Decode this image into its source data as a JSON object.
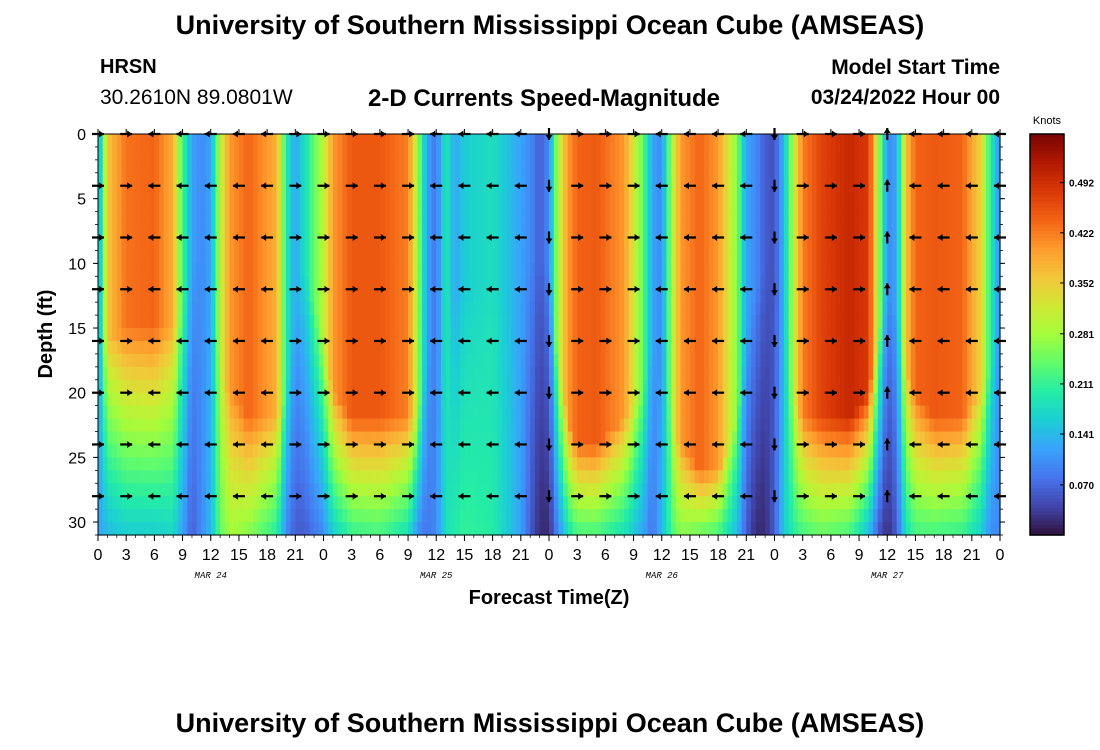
{
  "header": {
    "title": "University of Southern Mississippi Ocean Cube (AMSEAS)",
    "station": "HRSN",
    "coordinates": "30.2610N  89.0801W",
    "subtitle": "2-D Currents Speed-Magnitude",
    "model_start_label": "Model Start Time",
    "model_start_value": "03/24/2022 Hour 00"
  },
  "footer": {
    "title": "University of Southern Mississippi Ocean Cube (AMSEAS)"
  },
  "chart_data": {
    "type": "heatmap",
    "title": "2-D Currents Speed-Magnitude",
    "xlabel": "Forecast Time(Z)",
    "ylabel": "Depth (ft)",
    "x_range_hours": [
      0,
      96
    ],
    "y_range_ft": [
      0,
      31
    ],
    "x_ticks": [
      "0",
      "3",
      "6",
      "9",
      "12",
      "15",
      "18",
      "21",
      "0",
      "3",
      "6",
      "9",
      "12",
      "15",
      "18",
      "21",
      "0",
      "3",
      "6",
      "9",
      "12",
      "15",
      "18",
      "21",
      "0",
      "3",
      "6",
      "9",
      "12",
      "15",
      "18",
      "21",
      "0"
    ],
    "y_ticks": [
      "0",
      "5",
      "10",
      "15",
      "20",
      "25",
      "30"
    ],
    "y_tick_values": [
      0,
      5,
      10,
      15,
      20,
      25,
      30
    ],
    "date_labels": [
      "MAR 24",
      "MAR 25",
      "MAR 26",
      "MAR 27"
    ],
    "date_label_hours": [
      12,
      36,
      60,
      84
    ],
    "colorbar": {
      "unit": "Knots",
      "tick_labels": [
        "0.492",
        "0.422",
        "0.352",
        "0.281",
        "0.211",
        "0.141",
        "0.070"
      ],
      "tick_values": [
        0.492,
        0.422,
        0.352,
        0.281,
        0.211,
        0.141,
        0.07
      ],
      "range": [
        0.0,
        0.56
      ],
      "colors": [
        "#30123b",
        "#4145ab",
        "#4675ed",
        "#39a2fc",
        "#1bcfd4",
        "#24eca6",
        "#61fc6c",
        "#a4fc3b",
        "#d1e834",
        "#f3c63a",
        "#fe9b2d",
        "#f36315",
        "#d93806",
        "#b11901",
        "#7a0403"
      ]
    },
    "time_profile": {
      "description": "Approximate speed (knots) at surface and at bottom for each forecast hour",
      "hours": [
        0,
        1,
        3,
        6,
        8,
        9,
        10,
        11,
        12,
        13,
        14,
        16,
        19,
        20,
        21,
        22,
        24,
        25,
        27,
        30,
        33,
        34,
        35,
        36,
        37,
        38,
        39,
        42,
        45,
        46,
        47,
        48,
        49,
        50,
        51,
        53,
        56,
        58,
        59,
        60,
        61,
        62,
        64,
        66,
        68,
        69,
        70,
        71,
        72,
        73,
        74,
        75,
        77,
        80,
        82,
        83,
        84,
        85,
        86,
        87,
        89,
        92,
        94,
        95,
        96
      ],
      "surface": [
        0.1,
        0.36,
        0.43,
        0.44,
        0.38,
        0.22,
        0.12,
        0.1,
        0.12,
        0.3,
        0.4,
        0.44,
        0.38,
        0.2,
        0.12,
        0.18,
        0.3,
        0.4,
        0.45,
        0.45,
        0.42,
        0.28,
        0.12,
        0.08,
        0.2,
        0.12,
        0.16,
        0.18,
        0.12,
        0.1,
        0.06,
        0.1,
        0.3,
        0.4,
        0.44,
        0.45,
        0.4,
        0.24,
        0.12,
        0.1,
        0.28,
        0.4,
        0.44,
        0.4,
        0.26,
        0.12,
        0.1,
        0.06,
        0.05,
        0.14,
        0.3,
        0.42,
        0.47,
        0.5,
        0.48,
        0.3,
        0.1,
        0.12,
        0.36,
        0.44,
        0.45,
        0.44,
        0.34,
        0.2,
        0.1
      ],
      "bottom": [
        0.12,
        0.14,
        0.16,
        0.16,
        0.17,
        0.12,
        0.06,
        0.1,
        0.14,
        0.24,
        0.28,
        0.26,
        0.2,
        0.1,
        0.06,
        0.06,
        0.1,
        0.16,
        0.21,
        0.22,
        0.18,
        0.1,
        0.08,
        0.1,
        0.18,
        0.2,
        0.21,
        0.2,
        0.12,
        0.06,
        0.02,
        0.02,
        0.1,
        0.18,
        0.22,
        0.22,
        0.18,
        0.12,
        0.08,
        0.14,
        0.22,
        0.26,
        0.24,
        0.22,
        0.14,
        0.06,
        0.02,
        0.02,
        0.06,
        0.16,
        0.2,
        0.22,
        0.24,
        0.22,
        0.14,
        0.06,
        0.02,
        0.06,
        0.18,
        0.22,
        0.22,
        0.21,
        0.16,
        0.1,
        0.1
      ],
      "deep_intensity_depth_ft": [
        16,
        16,
        15,
        15,
        15,
        14,
        10,
        10,
        10,
        18,
        20,
        22,
        22,
        20,
        14,
        10,
        16,
        20,
        22,
        22,
        22,
        22,
        18,
        14,
        14,
        12,
        12,
        12,
        10,
        10,
        10,
        10,
        18,
        22,
        24,
        24,
        22,
        20,
        16,
        16,
        22,
        24,
        26,
        26,
        22,
        16,
        12,
        10,
        10,
        16,
        20,
        22,
        22,
        22,
        20,
        16,
        12,
        14,
        18,
        20,
        22,
        22,
        20,
        18,
        16
      ]
    },
    "arrow_depths_ft": [
      0,
      4,
      8,
      12,
      16,
      20,
      24,
      28
    ],
    "arrow_hours": [
      0,
      3,
      6,
      9,
      12,
      15,
      18,
      21,
      24,
      27,
      30,
      33,
      36,
      39,
      42,
      45,
      48,
      51,
      54,
      57,
      60,
      63,
      66,
      69,
      72,
      75,
      78,
      81,
      84,
      87,
      90,
      93,
      96
    ],
    "arrow_directions": [
      "east",
      "east",
      "west",
      "west",
      "west",
      "west",
      "west",
      "east",
      "east",
      "east",
      "east",
      "east",
      "west",
      "west",
      "west",
      "west",
      "south",
      "east",
      "east",
      "east",
      "west",
      "west",
      "west",
      "west",
      "south",
      "east",
      "east",
      "east",
      "north",
      "west",
      "west",
      "west",
      "west"
    ]
  }
}
